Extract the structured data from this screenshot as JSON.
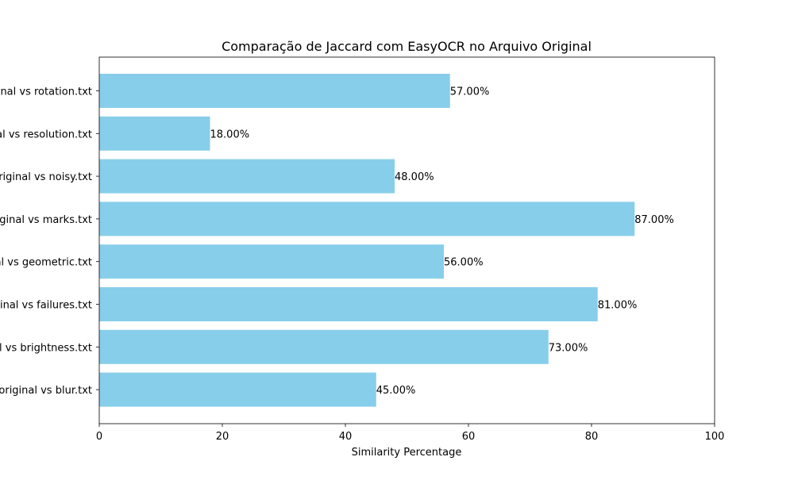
{
  "chart_data": {
    "type": "bar",
    "orientation": "horizontal",
    "title": "Comparação de Jaccard com EasyOCR no Arquivo Original",
    "xlabel": "Similarity Percentage",
    "ylabel": "",
    "xlim": [
      0,
      100
    ],
    "xticks": [
      0,
      20,
      40,
      60,
      80,
      100
    ],
    "grid": false,
    "legend": "none",
    "bar_color": "#87ceeb",
    "categories": [
      "original vs rotation.txt",
      "original vs resolution.txt",
      "original vs noisy.txt",
      "original vs marks.txt",
      "original vs geometric.txt",
      "original vs failures.txt",
      "original vs brightness.txt",
      "original vs blur.txt"
    ],
    "values": [
      57,
      18,
      48,
      87,
      56,
      81,
      73,
      45
    ],
    "value_labels": [
      "57.00%",
      "18.00%",
      "48.00%",
      "87.00%",
      "56.00%",
      "81.00%",
      "73.00%",
      "45.00%"
    ]
  }
}
